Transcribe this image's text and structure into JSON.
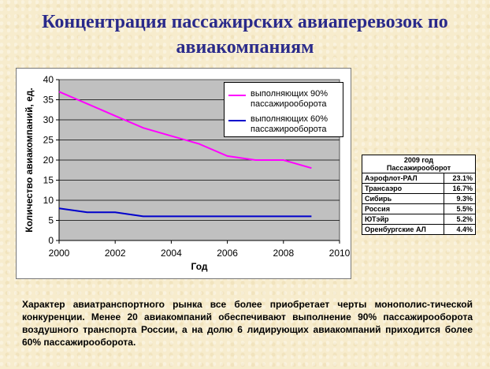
{
  "slide": {
    "title_line1": "Концентрация пассажирских авиаперевозок по",
    "title_line2": "авиакомпаниям"
  },
  "chart_data": {
    "type": "line",
    "x": [
      2000,
      2001,
      2002,
      2003,
      2004,
      2005,
      2006,
      2007,
      2008,
      2009
    ],
    "series": [
      {
        "name": "выполняющих 90% пассажирооборота",
        "color": "#ff00ff",
        "values": [
          37,
          34,
          31,
          28,
          26,
          24,
          21,
          20,
          20,
          18
        ]
      },
      {
        "name": "выполняющих 60% пассажирооборота",
        "color": "#0000cc",
        "values": [
          8,
          7,
          7,
          6,
          6,
          6,
          6,
          6,
          6,
          6
        ]
      }
    ],
    "xlabel": "Год",
    "ylabel": "Количество авиакомпаний, ед.",
    "xlim": [
      2000,
      2010
    ],
    "ylim": [
      0,
      40
    ],
    "x_ticks": [
      2000,
      2002,
      2004,
      2006,
      2008,
      2010
    ],
    "y_ticks": [
      0,
      5,
      10,
      15,
      20,
      25,
      30,
      35,
      40
    ],
    "grid": true,
    "plot_background": "#c0c0c0",
    "gridline_color": "#000000",
    "legend_position": "top-right"
  },
  "table": {
    "header_line1": "2009 год",
    "header_line2": "Пассажирооборот",
    "rows": [
      {
        "name": "Аэрофлот-РАЛ",
        "value": "23.1%"
      },
      {
        "name": "Трансаэро",
        "value": "16.7%"
      },
      {
        "name": "Сибирь",
        "value": "9.3%"
      },
      {
        "name": "Россия",
        "value": "5.5%"
      },
      {
        "name": "ЮТэйр",
        "value": "5.2%"
      },
      {
        "name": "Оренбургские АЛ",
        "value": "4.4%"
      }
    ]
  },
  "description": "Характер авиатранспортного рынка все более приобретает черты монополис-тической конкуренции. Менее 20 авиакомпаний обеспечивают выполнение 90% пассажирооборота воздушного транспорта России, а на долю 6 лидирующих авиакомпаний приходится более 60% пассажирооборота."
}
